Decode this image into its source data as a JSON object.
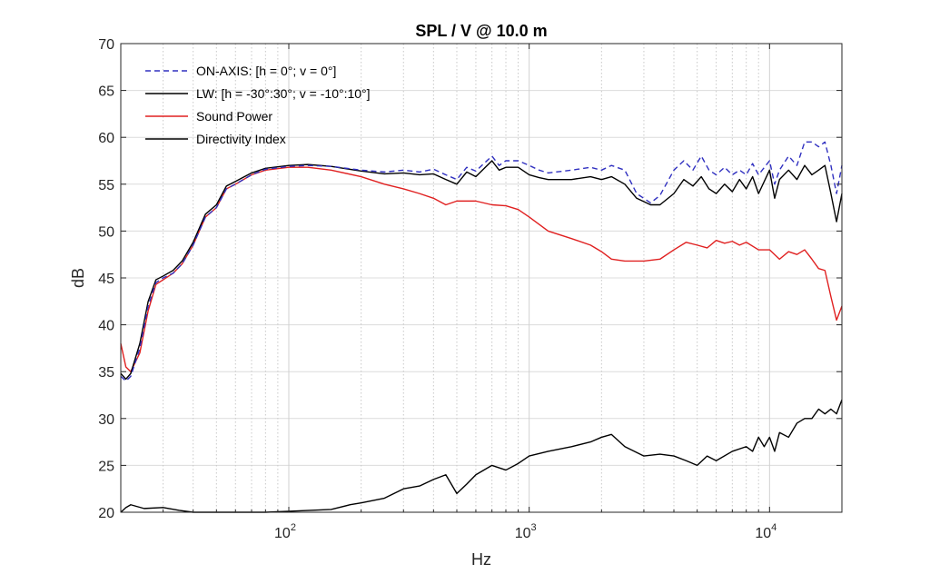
{
  "chart_data": {
    "type": "line",
    "title": "SPL / V @ 10.0 m",
    "xlabel": "Hz",
    "ylabel": "dB",
    "xscale": "log",
    "xlim": [
      20,
      20000
    ],
    "ylim": [
      20,
      70
    ],
    "yticks": [
      "20",
      "25",
      "30",
      "35",
      "40",
      "45",
      "50",
      "55",
      "60",
      "65",
      "70"
    ],
    "xticks": [
      {
        "base": "10",
        "exp": "2"
      },
      {
        "base": "10",
        "exp": "3"
      },
      {
        "base": "10",
        "exp": "4"
      }
    ],
    "grid": true,
    "legend_position": "top-left",
    "series": [
      {
        "name": "ON-AXIS: [h = 0°; v = 0°]",
        "color": "#3030c0",
        "dash": "dashed",
        "points": [
          [
            20,
            34.5
          ],
          [
            21,
            34.0
          ],
          [
            22,
            34.5
          ],
          [
            24,
            37.5
          ],
          [
            26,
            42.0
          ],
          [
            28,
            44.5
          ],
          [
            30,
            45.0
          ],
          [
            33,
            45.5
          ],
          [
            36,
            46.5
          ],
          [
            40,
            48.5
          ],
          [
            45,
            51.5
          ],
          [
            50,
            52.5
          ],
          [
            55,
            54.5
          ],
          [
            60,
            55.0
          ],
          [
            70,
            56.0
          ],
          [
            80,
            56.6
          ],
          [
            100,
            56.9
          ],
          [
            120,
            57.0
          ],
          [
            150,
            56.9
          ],
          [
            200,
            56.5
          ],
          [
            250,
            56.3
          ],
          [
            300,
            56.5
          ],
          [
            350,
            56.3
          ],
          [
            400,
            56.6
          ],
          [
            450,
            56.0
          ],
          [
            500,
            55.5
          ],
          [
            550,
            56.8
          ],
          [
            600,
            56.4
          ],
          [
            700,
            58.0
          ],
          [
            750,
            57.0
          ],
          [
            800,
            57.5
          ],
          [
            900,
            57.5
          ],
          [
            1000,
            57.0
          ],
          [
            1100,
            56.5
          ],
          [
            1200,
            56.2
          ],
          [
            1500,
            56.5
          ],
          [
            1800,
            56.8
          ],
          [
            2000,
            56.5
          ],
          [
            2200,
            57.0
          ],
          [
            2500,
            56.5
          ],
          [
            2800,
            54.0
          ],
          [
            3200,
            53.0
          ],
          [
            3500,
            53.8
          ],
          [
            4000,
            56.5
          ],
          [
            4400,
            57.5
          ],
          [
            4800,
            56.5
          ],
          [
            5200,
            58.0
          ],
          [
            5600,
            56.5
          ],
          [
            6000,
            56.0
          ],
          [
            6500,
            56.8
          ],
          [
            7000,
            56.0
          ],
          [
            7500,
            56.5
          ],
          [
            8000,
            56.0
          ],
          [
            8500,
            57.2
          ],
          [
            9000,
            56.0
          ],
          [
            10000,
            57.5
          ],
          [
            10500,
            55.0
          ],
          [
            11000,
            56.5
          ],
          [
            12000,
            58.0
          ],
          [
            13000,
            57.0
          ],
          [
            14000,
            59.5
          ],
          [
            15000,
            59.5
          ],
          [
            16000,
            59.0
          ],
          [
            17000,
            59.5
          ],
          [
            18000,
            57.0
          ],
          [
            19000,
            54.0
          ],
          [
            20000,
            57.0
          ]
        ]
      },
      {
        "name": "LW: [h = -30°:30°; v = -10°:10°]",
        "color": "#000000",
        "dash": "solid",
        "points": [
          [
            20,
            34.8
          ],
          [
            21,
            34.2
          ],
          [
            22,
            34.8
          ],
          [
            24,
            38.0
          ],
          [
            26,
            42.5
          ],
          [
            28,
            44.8
          ],
          [
            30,
            45.2
          ],
          [
            33,
            45.8
          ],
          [
            36,
            46.8
          ],
          [
            40,
            48.8
          ],
          [
            45,
            51.8
          ],
          [
            50,
            52.8
          ],
          [
            55,
            54.8
          ],
          [
            60,
            55.3
          ],
          [
            70,
            56.2
          ],
          [
            80,
            56.7
          ],
          [
            100,
            57.0
          ],
          [
            120,
            57.1
          ],
          [
            150,
            56.9
          ],
          [
            200,
            56.4
          ],
          [
            250,
            56.1
          ],
          [
            300,
            56.2
          ],
          [
            350,
            56.0
          ],
          [
            400,
            56.1
          ],
          [
            450,
            55.5
          ],
          [
            500,
            55.0
          ],
          [
            550,
            56.3
          ],
          [
            600,
            55.8
          ],
          [
            700,
            57.5
          ],
          [
            750,
            56.5
          ],
          [
            800,
            56.8
          ],
          [
            900,
            56.8
          ],
          [
            1000,
            56.0
          ],
          [
            1100,
            55.7
          ],
          [
            1200,
            55.5
          ],
          [
            1500,
            55.5
          ],
          [
            1800,
            55.8
          ],
          [
            2000,
            55.5
          ],
          [
            2200,
            55.8
          ],
          [
            2500,
            55.0
          ],
          [
            2800,
            53.5
          ],
          [
            3200,
            52.8
          ],
          [
            3500,
            52.8
          ],
          [
            4000,
            54.0
          ],
          [
            4400,
            55.5
          ],
          [
            4800,
            54.8
          ],
          [
            5200,
            55.8
          ],
          [
            5600,
            54.5
          ],
          [
            6000,
            54.0
          ],
          [
            6500,
            55.0
          ],
          [
            7000,
            54.2
          ],
          [
            7500,
            55.5
          ],
          [
            8000,
            54.5
          ],
          [
            8500,
            55.8
          ],
          [
            9000,
            54.0
          ],
          [
            10000,
            56.5
          ],
          [
            10500,
            53.5
          ],
          [
            11000,
            55.5
          ],
          [
            12000,
            56.5
          ],
          [
            13000,
            55.5
          ],
          [
            14000,
            57.0
          ],
          [
            15000,
            56.0
          ],
          [
            16000,
            56.5
          ],
          [
            17000,
            57.0
          ],
          [
            18000,
            54.0
          ],
          [
            19000,
            51.0
          ],
          [
            20000,
            54.0
          ]
        ]
      },
      {
        "name": "Sound Power",
        "color": "#e02020",
        "dash": "solid",
        "points": [
          [
            20,
            38.0
          ],
          [
            21,
            35.5
          ],
          [
            22,
            35.0
          ],
          [
            24,
            37.0
          ],
          [
            26,
            41.5
          ],
          [
            28,
            44.3
          ],
          [
            30,
            44.8
          ],
          [
            33,
            45.5
          ],
          [
            36,
            46.5
          ],
          [
            40,
            48.5
          ],
          [
            45,
            51.5
          ],
          [
            50,
            52.5
          ],
          [
            55,
            54.5
          ],
          [
            60,
            55.0
          ],
          [
            70,
            56.0
          ],
          [
            80,
            56.5
          ],
          [
            100,
            56.8
          ],
          [
            120,
            56.8
          ],
          [
            150,
            56.5
          ],
          [
            200,
            55.8
          ],
          [
            250,
            55.0
          ],
          [
            300,
            54.5
          ],
          [
            350,
            54.0
          ],
          [
            400,
            53.5
          ],
          [
            450,
            52.8
          ],
          [
            500,
            53.2
          ],
          [
            600,
            53.2
          ],
          [
            700,
            52.8
          ],
          [
            800,
            52.7
          ],
          [
            900,
            52.3
          ],
          [
            1000,
            51.5
          ],
          [
            1200,
            50.0
          ],
          [
            1500,
            49.2
          ],
          [
            1800,
            48.5
          ],
          [
            2000,
            47.8
          ],
          [
            2200,
            47.0
          ],
          [
            2500,
            46.8
          ],
          [
            3000,
            46.8
          ],
          [
            3500,
            47.0
          ],
          [
            4000,
            48.0
          ],
          [
            4500,
            48.8
          ],
          [
            5000,
            48.5
          ],
          [
            5500,
            48.2
          ],
          [
            6000,
            49.0
          ],
          [
            6500,
            48.7
          ],
          [
            7000,
            48.9
          ],
          [
            7500,
            48.5
          ],
          [
            8000,
            48.8
          ],
          [
            9000,
            48.0
          ],
          [
            10000,
            48.0
          ],
          [
            11000,
            47.0
          ],
          [
            12000,
            47.8
          ],
          [
            13000,
            47.5
          ],
          [
            14000,
            48.0
          ],
          [
            15000,
            47.0
          ],
          [
            16000,
            46.0
          ],
          [
            17000,
            45.8
          ],
          [
            18000,
            43.0
          ],
          [
            19000,
            40.5
          ],
          [
            20000,
            42.0
          ]
        ]
      },
      {
        "name": "Directivity Index",
        "color": "#000000",
        "dash": "solid",
        "points": [
          [
            20,
            20.0
          ],
          [
            21,
            20.5
          ],
          [
            22,
            20.8
          ],
          [
            25,
            20.4
          ],
          [
            30,
            20.5
          ],
          [
            35,
            20.2
          ],
          [
            40,
            20.0
          ],
          [
            50,
            20.0
          ],
          [
            60,
            20.0
          ],
          [
            80,
            20.0
          ],
          [
            100,
            20.1
          ],
          [
            150,
            20.3
          ],
          [
            180,
            20.8
          ],
          [
            200,
            21.0
          ],
          [
            250,
            21.5
          ],
          [
            300,
            22.5
          ],
          [
            350,
            22.8
          ],
          [
            400,
            23.5
          ],
          [
            450,
            24.0
          ],
          [
            500,
            22.0
          ],
          [
            550,
            23.0
          ],
          [
            600,
            24.0
          ],
          [
            700,
            25.0
          ],
          [
            800,
            24.5
          ],
          [
            900,
            25.2
          ],
          [
            1000,
            26.0
          ],
          [
            1200,
            26.5
          ],
          [
            1500,
            27.0
          ],
          [
            1800,
            27.5
          ],
          [
            2000,
            28.0
          ],
          [
            2200,
            28.3
          ],
          [
            2500,
            27.0
          ],
          [
            3000,
            26.0
          ],
          [
            3500,
            26.2
          ],
          [
            4000,
            26.0
          ],
          [
            4500,
            25.5
          ],
          [
            5000,
            25.0
          ],
          [
            5500,
            26.0
          ],
          [
            6000,
            25.5
          ],
          [
            7000,
            26.5
          ],
          [
            8000,
            27.0
          ],
          [
            8500,
            26.5
          ],
          [
            9000,
            28.0
          ],
          [
            9500,
            27.0
          ],
          [
            10000,
            28.0
          ],
          [
            10500,
            26.5
          ],
          [
            11000,
            28.5
          ],
          [
            12000,
            28.0
          ],
          [
            13000,
            29.5
          ],
          [
            14000,
            30.0
          ],
          [
            15000,
            30.0
          ],
          [
            16000,
            31.0
          ],
          [
            17000,
            30.5
          ],
          [
            18000,
            31.0
          ],
          [
            19000,
            30.5
          ],
          [
            20000,
            32.0
          ]
        ]
      }
    ]
  }
}
